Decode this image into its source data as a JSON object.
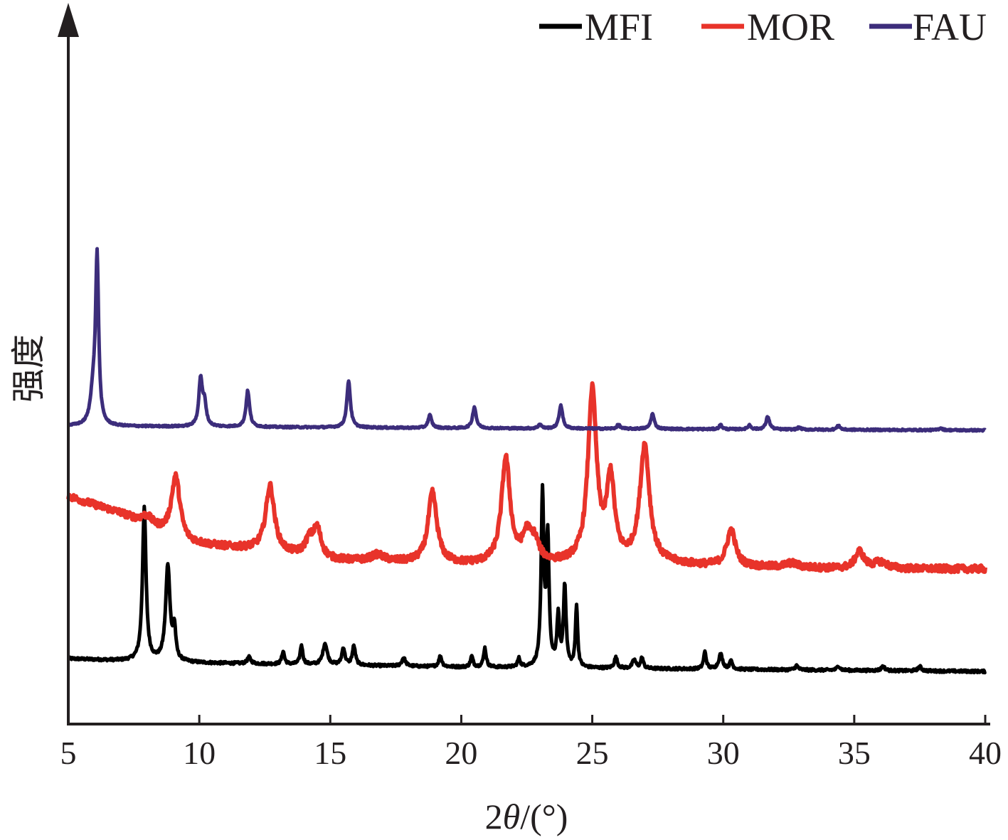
{
  "chart_data": {
    "type": "line",
    "xlabel_prefix": "2",
    "xlabel_symbol": "θ",
    "xlabel_suffix": "/(°)",
    "ylabel": "强度",
    "xlim": [
      5,
      40
    ],
    "xticks": [
      5,
      10,
      15,
      20,
      25,
      30,
      35,
      40
    ],
    "y_units": "arbitrary (stacked, normalized 0–100)",
    "legend_position": "top-right",
    "grid": false,
    "series": [
      {
        "name": "MFI",
        "color": "#000000",
        "offset": 0,
        "baseline": [
          [
            5,
            8
          ],
          [
            7,
            7
          ],
          [
            10,
            6
          ],
          [
            20,
            4
          ],
          [
            30,
            3
          ],
          [
            40,
            2
          ]
        ],
        "peaks": [
          [
            7.9,
            72,
            0.08
          ],
          [
            8.8,
            45,
            0.1
          ],
          [
            9.05,
            14,
            0.06
          ],
          [
            11.9,
            3,
            0.08
          ],
          [
            13.2,
            6,
            0.06
          ],
          [
            13.9,
            9,
            0.06
          ],
          [
            14.8,
            10,
            0.1
          ],
          [
            15.5,
            8,
            0.07
          ],
          [
            15.9,
            9,
            0.07
          ],
          [
            17.8,
            4,
            0.08
          ],
          [
            19.2,
            5,
            0.07
          ],
          [
            20.4,
            5,
            0.06
          ],
          [
            20.9,
            9,
            0.06
          ],
          [
            22.2,
            4,
            0.06
          ],
          [
            23.1,
            80,
            0.06
          ],
          [
            23.3,
            60,
            0.06
          ],
          [
            23.7,
            23,
            0.06
          ],
          [
            23.95,
            38,
            0.06
          ],
          [
            24.4,
            29,
            0.05
          ],
          [
            25.9,
            5,
            0.07
          ],
          [
            26.6,
            4,
            0.08
          ],
          [
            26.9,
            5,
            0.06
          ],
          [
            29.3,
            8,
            0.06
          ],
          [
            29.9,
            7,
            0.09
          ],
          [
            30.3,
            4,
            0.06
          ],
          [
            32.8,
            2,
            0.07
          ],
          [
            34.4,
            2,
            0.07
          ],
          [
            36.1,
            2,
            0.08
          ],
          [
            37.5,
            2,
            0.08
          ]
        ]
      },
      {
        "name": "MOR",
        "color": "#e8332a",
        "offset": 50,
        "baseline": [
          [
            5,
            34
          ],
          [
            7,
            26
          ],
          [
            9.5,
            12
          ],
          [
            12,
            9
          ],
          [
            15,
            4
          ],
          [
            20,
            2
          ],
          [
            25,
            2
          ],
          [
            28,
            2
          ],
          [
            30,
            1
          ],
          [
            35,
            0
          ],
          [
            40,
            0
          ]
        ],
        "peaks": [
          [
            8.0,
            4,
            0.25
          ],
          [
            9.1,
            29,
            0.2
          ],
          [
            12.7,
            31,
            0.2
          ],
          [
            14.2,
            7,
            0.2
          ],
          [
            14.5,
            13,
            0.18
          ],
          [
            16.8,
            3,
            0.3
          ],
          [
            18.9,
            33,
            0.2
          ],
          [
            21.7,
            49,
            0.2
          ],
          [
            22.5,
            12,
            0.2
          ],
          [
            22.8,
            9,
            0.2
          ],
          [
            25.0,
            80,
            0.2
          ],
          [
            25.7,
            38,
            0.18
          ],
          [
            27.0,
            55,
            0.22
          ],
          [
            30.3,
            17,
            0.2
          ],
          [
            32.6,
            2,
            0.3
          ],
          [
            35.2,
            8,
            0.2
          ],
          [
            36.0,
            3,
            0.3
          ]
        ]
      },
      {
        "name": "FAU",
        "color": "#3c2d7b",
        "offset": 115,
        "baseline": [
          [
            5,
            2
          ],
          [
            20,
            1
          ],
          [
            40,
            0
          ]
        ],
        "peaks": [
          [
            6.1,
            77,
            0.07
          ],
          [
            5.95,
            15,
            0.12
          ],
          [
            10.05,
            22,
            0.08
          ],
          [
            10.2,
            10,
            0.08
          ],
          [
            11.85,
            17,
            0.08
          ],
          [
            15.7,
            22,
            0.08
          ],
          [
            18.8,
            6,
            0.08
          ],
          [
            20.5,
            10,
            0.08
          ],
          [
            23.0,
            2,
            0.07
          ],
          [
            23.8,
            11,
            0.08
          ],
          [
            26.0,
            2,
            0.07
          ],
          [
            27.3,
            7,
            0.08
          ],
          [
            29.9,
            2,
            0.07
          ],
          [
            31.0,
            2,
            0.07
          ],
          [
            31.7,
            6,
            0.08
          ],
          [
            32.9,
            1,
            0.07
          ],
          [
            34.4,
            2,
            0.07
          ],
          [
            38.3,
            1,
            0.08
          ]
        ]
      }
    ]
  }
}
